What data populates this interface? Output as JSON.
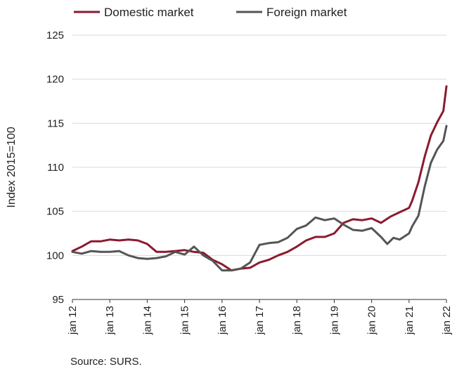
{
  "chart_data": {
    "type": "line",
    "title": "",
    "xlabel": "",
    "ylabel": "Index 2015=100",
    "ylim": [
      95,
      125
    ],
    "yticks": [
      95,
      100,
      105,
      110,
      115,
      120,
      125
    ],
    "x_start": "2012-01",
    "x_end": "2022-01",
    "x_tick_labels": [
      "jan 12",
      "jan 13",
      "jan 14",
      "jan 15",
      "jan 16",
      "jan 17",
      "jan 18",
      "jan 19",
      "jan 20",
      "jan 21",
      "jan 22"
    ],
    "grid": "horizontal",
    "legend_position": "top",
    "series": [
      {
        "name": "Domestic market",
        "color": "#8b1a2e",
        "x": [
          "2012-01",
          "2012-04",
          "2012-07",
          "2012-10",
          "2013-01",
          "2013-04",
          "2013-07",
          "2013-10",
          "2014-01",
          "2014-04",
          "2014-07",
          "2014-10",
          "2015-01",
          "2015-04",
          "2015-07",
          "2015-10",
          "2016-01",
          "2016-04",
          "2016-07",
          "2016-10",
          "2017-01",
          "2017-04",
          "2017-07",
          "2017-10",
          "2018-01",
          "2018-04",
          "2018-07",
          "2018-10",
          "2019-01",
          "2019-04",
          "2019-07",
          "2019-10",
          "2020-01",
          "2020-04",
          "2020-07",
          "2020-10",
          "2021-01",
          "2021-02",
          "2021-04",
          "2021-06",
          "2021-08",
          "2021-10",
          "2021-12",
          "2022-01"
        ],
        "values": [
          100.5,
          101.0,
          101.6,
          101.6,
          101.8,
          101.7,
          101.8,
          101.7,
          101.3,
          100.4,
          100.4,
          100.5,
          100.6,
          100.4,
          100.3,
          99.5,
          99.0,
          98.3,
          98.5,
          98.6,
          99.2,
          99.5,
          100.0,
          100.4,
          101.0,
          101.7,
          102.1,
          102.1,
          102.5,
          103.7,
          104.1,
          104.0,
          104.2,
          103.7,
          104.4,
          104.9,
          105.4,
          106.2,
          108.3,
          111.2,
          113.6,
          115.1,
          116.4,
          119.2
        ]
      },
      {
        "name": "Foreign market",
        "color": "#555555",
        "x": [
          "2012-01",
          "2012-04",
          "2012-07",
          "2012-10",
          "2013-01",
          "2013-04",
          "2013-07",
          "2013-10",
          "2014-01",
          "2014-04",
          "2014-07",
          "2014-10",
          "2015-01",
          "2015-04",
          "2015-07",
          "2015-10",
          "2016-01",
          "2016-04",
          "2016-07",
          "2016-10",
          "2017-01",
          "2017-04",
          "2017-07",
          "2017-10",
          "2018-01",
          "2018-04",
          "2018-07",
          "2018-10",
          "2019-01",
          "2019-04",
          "2019-07",
          "2019-10",
          "2020-01",
          "2020-04",
          "2020-06",
          "2020-08",
          "2020-10",
          "2021-01",
          "2021-02",
          "2021-04",
          "2021-06",
          "2021-08",
          "2021-10",
          "2021-12",
          "2022-01"
        ],
        "values": [
          100.4,
          100.2,
          100.5,
          100.4,
          100.4,
          100.5,
          100.0,
          99.7,
          99.6,
          99.7,
          99.9,
          100.4,
          100.1,
          101.0,
          100.0,
          99.4,
          98.3,
          98.3,
          98.5,
          99.2,
          101.2,
          101.4,
          101.5,
          102.0,
          103.0,
          103.4,
          104.3,
          104.0,
          104.2,
          103.5,
          102.9,
          102.8,
          103.1,
          102.1,
          101.3,
          102.0,
          101.8,
          102.5,
          103.3,
          104.5,
          107.8,
          110.5,
          112.0,
          113.0,
          114.7
        ]
      }
    ]
  },
  "source_text": "Source: SURS."
}
